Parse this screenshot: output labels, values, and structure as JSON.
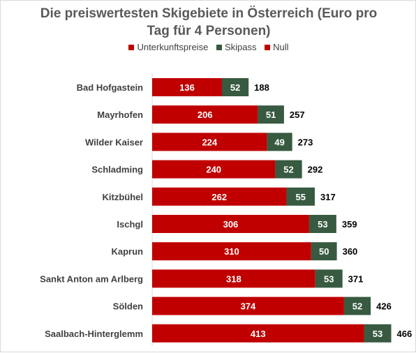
{
  "chart_data": {
    "type": "bar",
    "orientation": "horizontal",
    "stacked": true,
    "title_line1": "Die preiswertesten Skigebiete in Österreich (Euro pro",
    "title_line2": "Tag für 4 Personen)",
    "categories": [
      "Bad Hofgastein",
      "Mayrhofen",
      "Wilder Kaiser",
      "Schladming",
      "Kitzbühel",
      "Ischgl",
      "Kaprun",
      "Sankt Anton am Arlberg",
      "Sölden",
      "Saalbach-Hinterglemm"
    ],
    "series": [
      {
        "name": "Unterkunftspreise",
        "color": "#c00000",
        "values": [
          136,
          206,
          224,
          240,
          262,
          306,
          310,
          318,
          374,
          413
        ]
      },
      {
        "name": "Skipass",
        "color": "#375a40",
        "values": [
          52,
          51,
          49,
          52,
          55,
          53,
          50,
          53,
          52,
          53
        ]
      },
      {
        "name": "Null",
        "color": "#c00000",
        "values": [
          188,
          257,
          273,
          292,
          317,
          359,
          360,
          371,
          426,
          466
        ]
      }
    ],
    "legend_position": "top",
    "grid": false
  }
}
